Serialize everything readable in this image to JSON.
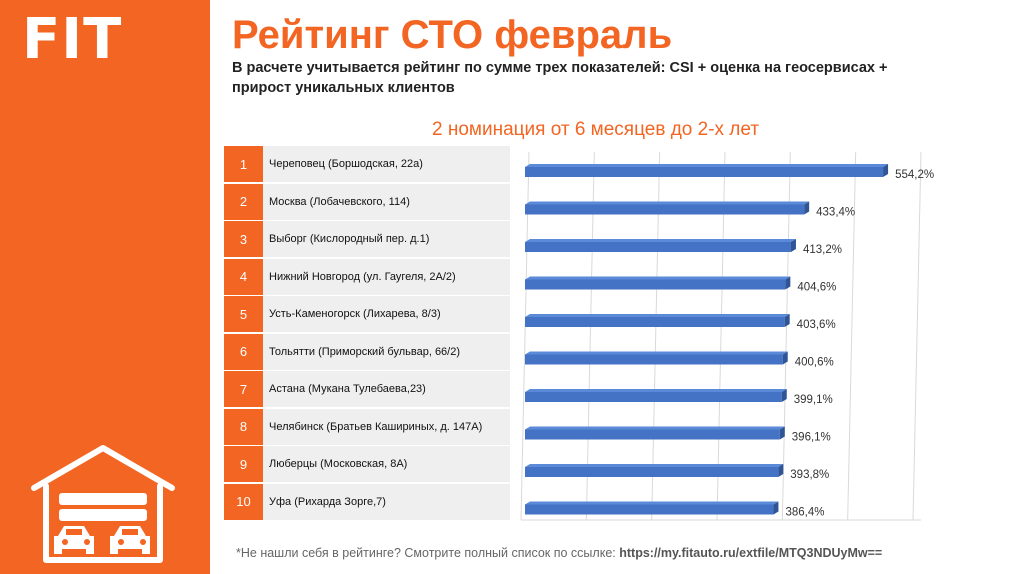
{
  "logo": "FIT",
  "title": "Рейтинг СТО февраль",
  "subtitle": "В расчете учитывается рейтинг по сумме трех показателей: CSI + оценка на геосервисах + прирост уникальных клиентов",
  "nomination": "2 номинация от 6 месяцев до 2-х лет",
  "colors": {
    "accent": "#f26522",
    "bar": "#4472c4",
    "bar_dark": "#2f5597"
  },
  "footer": {
    "note": "*Не нашли себя в рейтинге? Смотрите полный список по ссылке: ",
    "link": "https://my.fitauto.ru/extfile/MTQ3NDUyMw=="
  },
  "chart_data": {
    "type": "bar",
    "orientation": "horizontal",
    "grid": true,
    "categories": [
      "1",
      "2",
      "3",
      "4",
      "5",
      "6",
      "7",
      "8",
      "9",
      "10"
    ],
    "labels": [
      "Череповец (Боршодская, 22а)",
      "Москва (Лобачевского, 114)",
      "Выборг (Кислородный пер. д.1)",
      "Нижний Новгород (ул. Гаугеля, 2А/2)",
      "Усть-Каменогорск (Лихарева, 8/3)",
      "Тольятти (Приморский бульвар, 66/2)",
      "Астана (Мукана Тулебаева,23)",
      "Челябинск (Братьев Кашириных, д. 147А)",
      "Люберцы (Московская, 8А)",
      "Уфа (Рихарда Зорге,7)"
    ],
    "values": [
      554.2,
      433.4,
      413.2,
      404.6,
      403.6,
      400.6,
      399.1,
      396.1,
      393.8,
      386.4
    ],
    "value_labels": [
      "554,2%",
      "433,4%",
      "413,2%",
      "404,6%",
      "403,6%",
      "400,6%",
      "399,1%",
      "396,1%",
      "393,8%",
      "386,4%"
    ],
    "xlim": [
      0,
      600
    ]
  }
}
